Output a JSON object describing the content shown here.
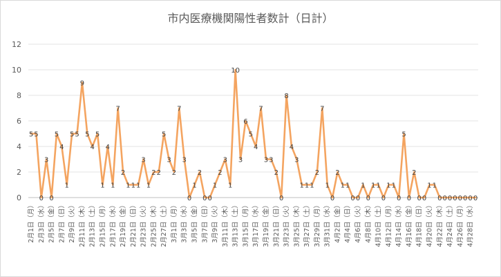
{
  "chart_data": {
    "type": "line",
    "title": "市内医療機関陽性者数計（日計）",
    "xlabel": "",
    "ylabel": "",
    "ylim": [
      0,
      12
    ],
    "yticks": [
      0,
      2,
      4,
      6,
      8,
      10,
      12
    ],
    "grid": true,
    "legend": "none",
    "color": "#F4A460",
    "x": [
      "2月1日",
      "2月2日",
      "2月3日",
      "2月4日",
      "2月5日",
      "2月6日",
      "2月7日",
      "2月8日",
      "2月9日",
      "2月10日",
      "2月11日",
      "2月12日",
      "2月13日",
      "2月14日",
      "2月15日",
      "2月16日",
      "2月17日",
      "2月18日",
      "2月19日",
      "2月20日",
      "2月21日",
      "2月22日",
      "2月23日",
      "2月24日",
      "2月25日",
      "2月26日",
      "2月27日",
      "2月28日",
      "3月1日",
      "3月2日",
      "3月3日",
      "3月4日",
      "3月5日",
      "3月6日",
      "3月7日",
      "3月8日",
      "3月9日",
      "3月10日",
      "3月11日",
      "3月12日",
      "3月13日",
      "3月14日",
      "3月15日",
      "3月16日",
      "3月17日",
      "3月18日",
      "3月19日",
      "3月20日",
      "3月21日",
      "3月22日",
      "3月23日",
      "3月24日",
      "3月25日",
      "3月26日",
      "3月27日",
      "3月28日",
      "3月29日",
      "3月30日",
      "3月31日",
      "4月1日",
      "4月2日",
      "4月3日",
      "4月4日",
      "4月5日",
      "4月6日",
      "4月7日",
      "4月8日",
      "4月9日",
      "4月10日",
      "4月11日",
      "4月12日",
      "4月13日",
      "4月14日",
      "4月15日",
      "4月16日",
      "4月17日",
      "4月18日",
      "4月19日",
      "4月20日",
      "4月21日",
      "4月22日",
      "4月23日",
      "4月24日",
      "4月25日",
      "4月26日",
      "4月27日",
      "4月28日",
      "4月29日"
    ],
    "tick_labels": [
      "2月1日（月）",
      "2月3日（水）",
      "2月5日（金）",
      "2月7日（日）",
      "2月9日（火）",
      "2月11日（木）",
      "2月13日（土）",
      "2月15日（月）",
      "2月17日（水）",
      "2月19日（金）",
      "2月21日（日）",
      "2月23日（火）",
      "2月25日（木）",
      "2月27日（土）",
      "3月1日（月）",
      "3月3日（水）",
      "3月5日（金）",
      "3月7日（日）",
      "3月9日（火）",
      "3月11日（木）",
      "3月13日（土）",
      "3月15日（月）",
      "3月17日（水）",
      "3月19日（金）",
      "3月21日（日）",
      "3月23日（火）",
      "3月25日（木）",
      "3月27日（土）",
      "3月29日（月）",
      "3月31日（水）",
      "4月2日（金）",
      "4月4日（日）",
      "4月6日（火）",
      "4月8日（木）",
      "4月10日（土）",
      "4月12日（月）",
      "4月14日（水）",
      "4月16日（金）",
      "4月18日（日）",
      "4月20日（火）",
      "4月22日（木）",
      "4月24日（土）",
      "4月26日（月）",
      "4月28日（水）"
    ],
    "series": [
      {
        "values": [
          5,
          5,
          0,
          3,
          0,
          5,
          4,
          1,
          5,
          5,
          9,
          5,
          4,
          5,
          1,
          4,
          1,
          7,
          2,
          1,
          1,
          1,
          3,
          1,
          2,
          2,
          5,
          3,
          2,
          7,
          3,
          0,
          1,
          2,
          0,
          0,
          1,
          2,
          3,
          1,
          10,
          3,
          6,
          5,
          4,
          7,
          3,
          3,
          2,
          0,
          8,
          4,
          3,
          1,
          1,
          1,
          2,
          7,
          1,
          0,
          2,
          1,
          1,
          0,
          0,
          1,
          0,
          1,
          1,
          0,
          1,
          1,
          0,
          5,
          0,
          2,
          0,
          0,
          1,
          1,
          0,
          0,
          0,
          0,
          0,
          0,
          0,
          0
        ]
      }
    ]
  }
}
